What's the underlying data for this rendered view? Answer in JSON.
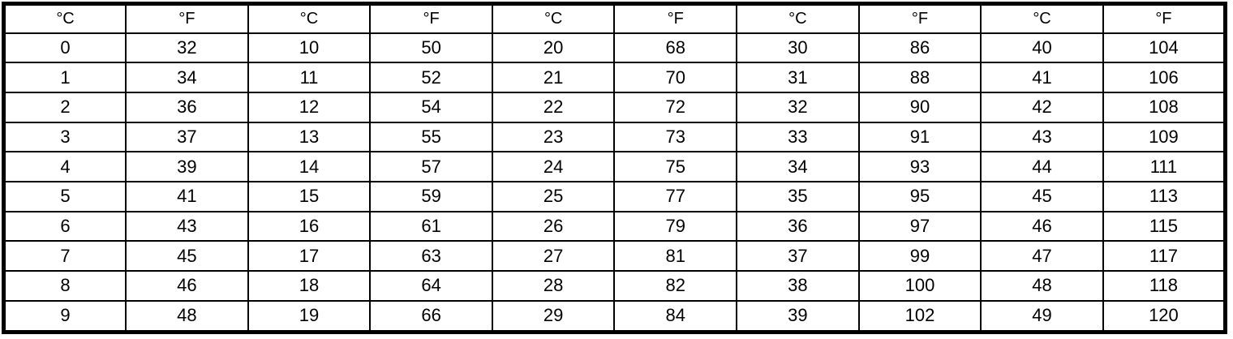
{
  "table": {
    "name": "celsius-fahrenheit-conversion-table",
    "headers": [
      "°C",
      "°F",
      "°C",
      "°F",
      "°C",
      "°F",
      "°C",
      "°F",
      "°C",
      "°F"
    ],
    "rows": [
      [
        "0",
        "32",
        "10",
        "50",
        "20",
        "68",
        "30",
        "86",
        "40",
        "104"
      ],
      [
        "1",
        "34",
        "11",
        "52",
        "21",
        "70",
        "31",
        "88",
        "41",
        "106"
      ],
      [
        "2",
        "36",
        "12",
        "54",
        "22",
        "72",
        "32",
        "90",
        "42",
        "108"
      ],
      [
        "3",
        "37",
        "13",
        "55",
        "23",
        "73",
        "33",
        "91",
        "43",
        "109"
      ],
      [
        "4",
        "39",
        "14",
        "57",
        "24",
        "75",
        "34",
        "93",
        "44",
        "111"
      ],
      [
        "5",
        "41",
        "15",
        "59",
        "25",
        "77",
        "35",
        "95",
        "45",
        "113"
      ],
      [
        "6",
        "43",
        "16",
        "61",
        "26",
        "79",
        "36",
        "97",
        "46",
        "115"
      ],
      [
        "7",
        "45",
        "17",
        "63",
        "27",
        "81",
        "37",
        "99",
        "47",
        "117"
      ],
      [
        "8",
        "46",
        "18",
        "64",
        "28",
        "82",
        "38",
        "100",
        "48",
        "118"
      ],
      [
        "9",
        "48",
        "19",
        "66",
        "29",
        "84",
        "39",
        "102",
        "49",
        "120"
      ]
    ],
    "colors": {
      "border": "#000000",
      "background": "#ffffff",
      "text": "#000000"
    }
  }
}
